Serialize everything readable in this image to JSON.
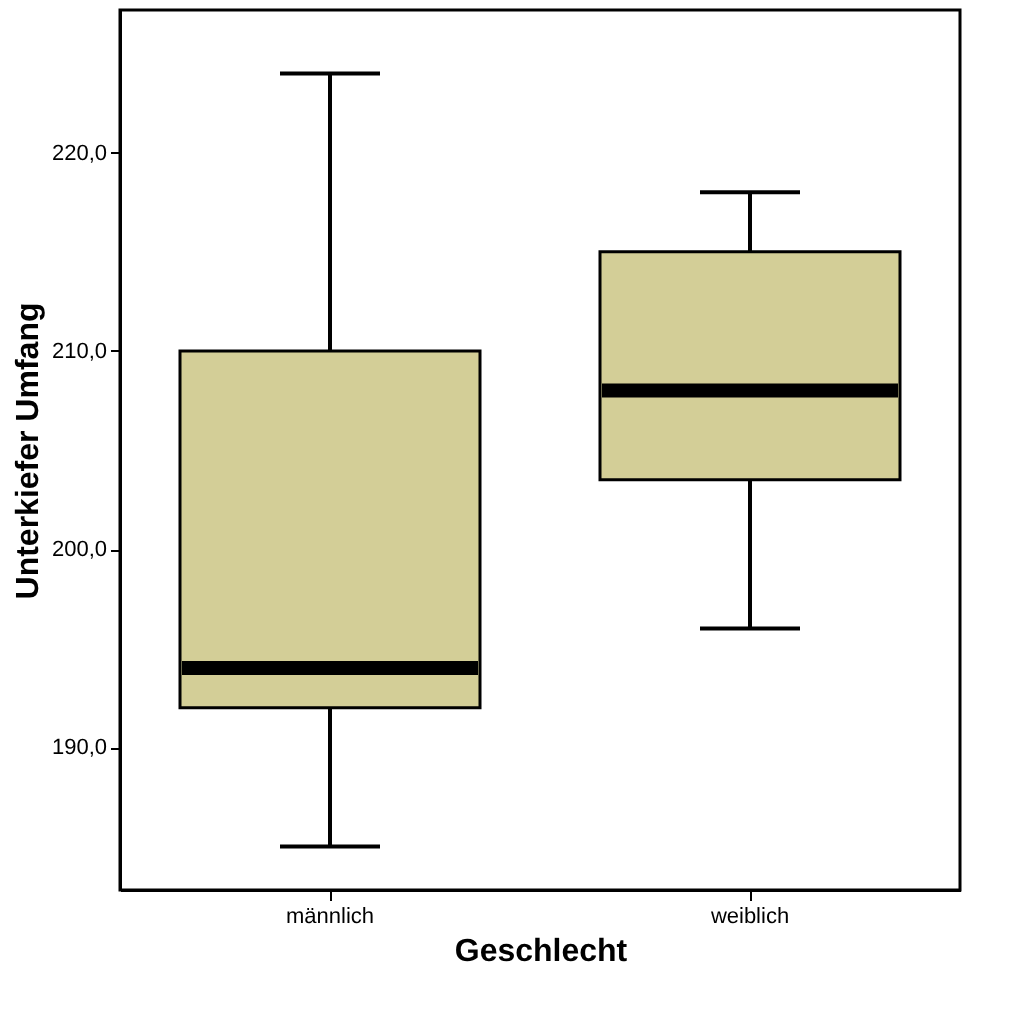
{
  "chart_data": {
    "type": "box",
    "xlabel": "Geschlecht",
    "ylabel": "Unterkiefer Umfang",
    "categories": [
      "männlich",
      "weiblich"
    ],
    "boxes": [
      {
        "low": 185,
        "q1": 192,
        "median": 194,
        "q3": 210,
        "high": 224
      },
      {
        "low": 196,
        "q1": 203.5,
        "median": 208,
        "q3": 215,
        "high": 218
      }
    ],
    "color": "#d3ce97",
    "ylim": [
      182.8,
      227.2
    ],
    "yticks": [
      {
        "value": 190,
        "label": "190,0"
      },
      {
        "value": 200,
        "label": "200,0"
      },
      {
        "value": 210,
        "label": "210,0"
      },
      {
        "value": 220,
        "label": "220,0"
      }
    ],
    "grid": false
  }
}
